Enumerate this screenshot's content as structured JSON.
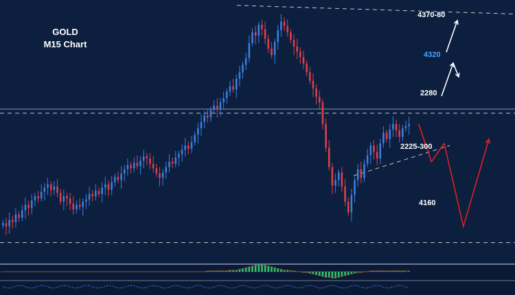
{
  "header": {
    "title_line1": "GOLD",
    "title_line2": "M15 Chart"
  },
  "colors": {
    "background": "#0c1f3f",
    "candle_up": "#3d7fe0",
    "candle_down": "#e0404a",
    "projection": "#e02020",
    "highlight_label": "#4aa3ff",
    "histogram_positive": "#2ecc71",
    "histogram_negative": "#2ecc71",
    "level_line": "#c8c8c8"
  },
  "chart_data": {
    "type": "candlestick",
    "instrument": "GOLD",
    "timeframe": "M15",
    "ylim": [
      4140,
      4385
    ],
    "closes": [
      4178,
      4175,
      4181,
      4179,
      4186,
      4183,
      4190,
      4195,
      4192,
      4199,
      4203,
      4201,
      4207,
      4211,
      4214,
      4209,
      4212,
      4206,
      4198,
      4203,
      4201,
      4196,
      4191,
      4195,
      4193,
      4198,
      4200,
      4205,
      4203,
      4208,
      4205,
      4211,
      4214,
      4209,
      4216,
      4221,
      4218,
      4224,
      4228,
      4232,
      4229,
      4234,
      4231,
      4236,
      4240,
      4238,
      4233,
      4229,
      4224,
      4220,
      4225,
      4230,
      4235,
      4233,
      4239,
      4242,
      4246,
      4250,
      4247,
      4253,
      4260,
      4266,
      4272,
      4278,
      4276,
      4283,
      4287,
      4284,
      4290,
      4294,
      4300,
      4305,
      4302,
      4312,
      4318,
      4325,
      4331,
      4345,
      4355,
      4352,
      4362,
      4358,
      4349,
      4340,
      4334,
      4346,
      4357,
      4365,
      4361,
      4355,
      4348,
      4342,
      4337,
      4332,
      4326,
      4318,
      4310,
      4303,
      4295,
      4290,
      4270,
      4248,
      4230,
      4213,
      4218,
      4225,
      4212,
      4198,
      4188,
      4204,
      4218,
      4228,
      4220,
      4233,
      4241,
      4250,
      4244,
      4238,
      4252,
      4262,
      4256,
      4265,
      4270,
      4264,
      4258,
      4266,
      4268,
      4270
    ],
    "levels": [
      {
        "label": "4370-80",
        "value": 4375,
        "style": "dashed"
      },
      {
        "label": "2280",
        "value": 4280,
        "style": "dashed"
      },
      {
        "label": "4160",
        "value": 4160,
        "style": "dashed"
      }
    ],
    "support_trendline_label": "2225-300",
    "annotations": [
      {
        "label": "4320",
        "color": "#4aa3ff"
      }
    ],
    "projection_path": [
      {
        "t": 130,
        "price": 4270
      },
      {
        "t": 134,
        "price": 4235
      },
      {
        "t": 138,
        "price": 4252
      },
      {
        "t": 144,
        "price": 4175
      },
      {
        "t": 152,
        "price": 4256
      }
    ],
    "upper_scenario_arrows": [
      {
        "from_price": 4280,
        "to_price": 4320
      },
      {
        "from_price": 4328,
        "to_price": 4375
      }
    ],
    "oscillator": {
      "values": [
        0,
        0,
        0,
        0,
        0,
        0,
        0,
        0,
        0,
        0,
        0,
        0,
        0,
        0,
        0,
        0,
        0,
        0,
        0,
        0,
        0,
        0,
        0,
        0,
        0,
        0,
        0,
        0,
        0,
        0,
        0,
        0,
        0,
        0,
        0,
        0,
        0,
        0,
        0,
        0,
        0,
        0,
        0,
        0,
        0,
        0,
        0,
        0,
        0,
        0,
        0,
        0,
        0,
        0,
        0,
        0,
        0,
        0,
        0,
        0,
        0,
        0,
        0,
        0,
        1,
        1,
        1,
        1,
        1,
        1,
        1,
        2,
        2,
        2,
        3,
        4,
        5,
        6,
        7,
        8,
        9,
        9,
        8,
        7,
        6,
        5,
        4,
        3,
        2,
        2,
        1,
        1,
        0,
        0,
        -1,
        -1,
        -2,
        -3,
        -4,
        -5,
        -6,
        -7,
        -7,
        -8,
        -8,
        -7,
        -6,
        -5,
        -4,
        -3,
        -2,
        -1,
        -1,
        0,
        0,
        1,
        1,
        1,
        1,
        1,
        1,
        1,
        1,
        1,
        1,
        1,
        1,
        1
      ]
    }
  }
}
